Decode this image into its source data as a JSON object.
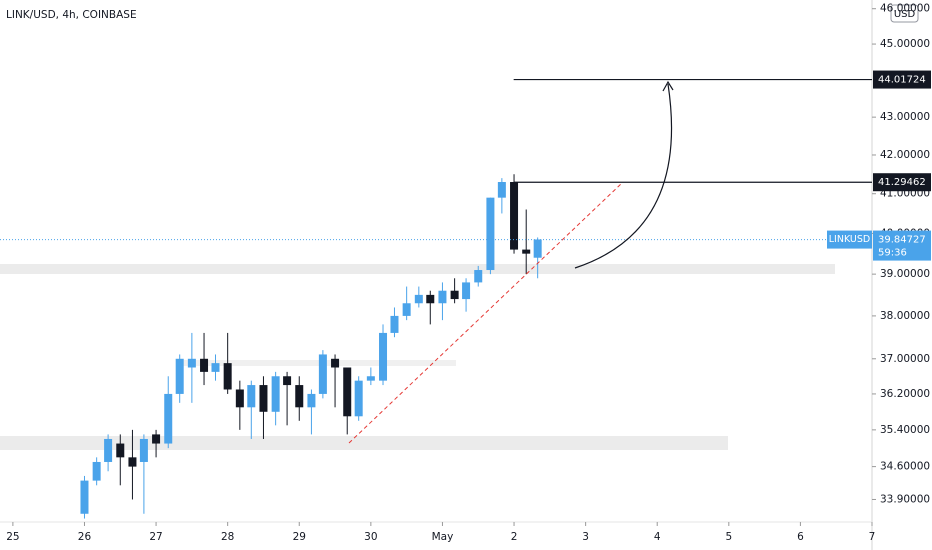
{
  "chart_data": {
    "type": "candlestick",
    "title": "LINK/USD, 4h, COINBASE",
    "currency": "USD",
    "symbol": "LINKUSD",
    "last_price": 39.84727,
    "countdown": "59:36",
    "levels": [
      44.01724,
      41.29462
    ],
    "up_color": "#4aa3ea",
    "down_color": "#131722",
    "log_scale": true,
    "x": [
      1,
      1.17,
      1.33,
      1.5,
      1.67,
      1.83,
      2,
      2.17,
      2.33,
      2.5,
      2.67,
      2.83,
      3,
      3.17,
      3.33,
      3.5,
      3.67,
      3.83,
      4,
      4.17,
      4.33,
      4.5,
      4.67,
      4.83,
      5,
      5.17,
      5.33,
      5.5,
      5.67,
      5.83,
      6,
      6.17,
      6.33,
      6.5,
      6.67,
      6.83,
      7,
      7.17,
      7.33
    ],
    "open": [
      33.6,
      34.3,
      34.7,
      35.1,
      34.8,
      34.7,
      35.3,
      35.1,
      36.2,
      36.8,
      37.0,
      36.7,
      36.9,
      36.3,
      35.9,
      36.4,
      35.8,
      36.6,
      36.4,
      35.9,
      36.2,
      37.0,
      36.8,
      35.7,
      36.5,
      36.5,
      37.6,
      38.0,
      38.3,
      38.5,
      38.3,
      38.6,
      38.4,
      38.8,
      39.1,
      40.9,
      41.3,
      39.6,
      39.4
    ],
    "high": [
      34.4,
      34.8,
      35.3,
      35.3,
      35.4,
      35.3,
      35.4,
      36.6,
      37.1,
      37.6,
      37.6,
      37.1,
      37.6,
      36.5,
      36.5,
      36.6,
      36.7,
      36.7,
      36.6,
      36.3,
      37.2,
      37.1,
      36.8,
      36.6,
      36.8,
      37.8,
      38.2,
      38.7,
      38.7,
      38.6,
      38.8,
      38.9,
      38.9,
      39.2,
      40.9,
      41.4,
      41.5,
      40.6,
      39.9
    ],
    "low": [
      33.5,
      34.2,
      34.5,
      34.2,
      33.9,
      33.6,
      34.8,
      35.0,
      36.0,
      36.0,
      36.4,
      36.5,
      36.2,
      35.4,
      35.2,
      35.2,
      35.5,
      35.5,
      35.6,
      35.3,
      36.1,
      35.9,
      35.3,
      35.6,
      36.4,
      36.4,
      37.5,
      37.9,
      38.2,
      37.8,
      37.9,
      38.3,
      38.1,
      38.7,
      39.0,
      40.5,
      39.5,
      39.0,
      38.9
    ],
    "close": [
      34.3,
      34.7,
      35.2,
      34.8,
      34.6,
      35.2,
      35.1,
      36.2,
      37.0,
      37.0,
      36.7,
      36.9,
      36.3,
      35.9,
      36.4,
      35.8,
      36.6,
      36.4,
      35.9,
      36.2,
      37.1,
      36.8,
      35.7,
      36.5,
      36.6,
      37.6,
      38.0,
      38.3,
      38.5,
      38.3,
      38.6,
      38.4,
      38.8,
      39.1,
      40.9,
      41.3,
      39.6,
      39.5,
      39.85
    ],
    "xlim": [
      -0.18,
      12.0
    ],
    "xticks": [
      {
        "value": 0,
        "label": "25"
      },
      {
        "value": 1,
        "label": "26"
      },
      {
        "value": 2,
        "label": "27"
      },
      {
        "value": 3,
        "label": "28"
      },
      {
        "value": 4,
        "label": "29"
      },
      {
        "value": 5,
        "label": "30"
      },
      {
        "value": 6,
        "label": "May"
      },
      {
        "value": 7,
        "label": "2"
      },
      {
        "value": 8,
        "label": "3"
      },
      {
        "value": 9,
        "label": "4"
      },
      {
        "value": 10,
        "label": "5"
      },
      {
        "value": 11,
        "label": "6"
      },
      {
        "value": 12,
        "label": "7"
      }
    ],
    "ylim": [
      33.47,
      46.25
    ],
    "yticks": [
      {
        "value": 46,
        "label": "46.00000"
      },
      {
        "value": 45,
        "label": "45.00000"
      },
      {
        "value": 43,
        "label": "43.00000"
      },
      {
        "value": 42,
        "label": "42.00000"
      },
      {
        "value": 41,
        "label": "41.00000"
      },
      {
        "value": 40,
        "label": "40.00000"
      },
      {
        "value": 39,
        "label": "39.00000"
      },
      {
        "value": 38,
        "label": "38.00000"
      },
      {
        "value": 37,
        "label": "37.00000"
      },
      {
        "value": 36.2,
        "label": "36.20000"
      },
      {
        "value": 35.4,
        "label": "35.40000"
      },
      {
        "value": 34.6,
        "label": "34.60000"
      },
      {
        "value": 33.9,
        "label": "33.90000"
      }
    ]
  }
}
